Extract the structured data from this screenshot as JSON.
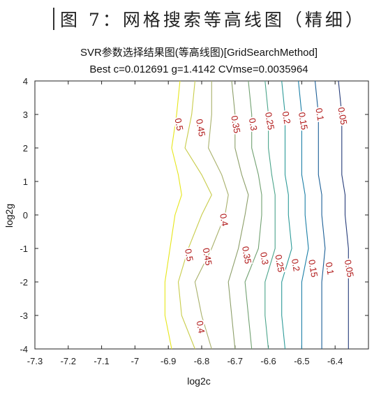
{
  "figure_heading": "图 7：网格搜索等高线图（精细）",
  "chart_data": {
    "type": "contour",
    "title": "SVR参数选择结果图(等高线图)[GridSearchMethod]",
    "subtitle": "Best c=0.012691 g=1.4142 CVmse=0.0035964",
    "xlabel": "log2c",
    "ylabel": "log2g",
    "xlim": [
      -7.3,
      -6.3
    ],
    "ylim": [
      -4,
      4
    ],
    "x_ticks": [
      "-7.3",
      "-7.2",
      "-7.1",
      "-7",
      "-6.9",
      "-6.8",
      "-6.7",
      "-6.6",
      "-6.5",
      "-6.4"
    ],
    "y_ticks": [
      "4",
      "3",
      "2",
      "1",
      "0",
      "-1",
      "-2",
      "-3",
      "-4"
    ],
    "x_tick_values": [
      -7.3,
      -7.2,
      -7.1,
      -7,
      -6.9,
      -6.8,
      -6.7,
      -6.6,
      -6.5,
      -6.4
    ],
    "y_tick_values": [
      4,
      3,
      2,
      1,
      0,
      -1,
      -2,
      -3,
      -4
    ],
    "grid": false,
    "colors": [
      "#e6e61a",
      "#c8cc4a",
      "#a8b06a",
      "#8c9e68",
      "#70a070",
      "#4aa48a",
      "#2c9a98",
      "#1a7ea6",
      "#1a5e96",
      "#243a78"
    ],
    "levels": [
      {
        "label": "0.5",
        "points": [
          [
            -6.865,
            4
          ],
          [
            -6.875,
            3
          ],
          [
            -6.89,
            2
          ],
          [
            -6.87,
            1.2
          ],
          [
            -6.86,
            0.6
          ],
          [
            -6.88,
            0
          ],
          [
            -6.895,
            -1
          ],
          [
            -6.91,
            -2
          ],
          [
            -6.91,
            -3
          ],
          [
            -6.89,
            -4
          ]
        ],
        "labels_at": [
          [
            -6.87,
            2.7
          ],
          [
            -6.84,
            -1.2
          ]
        ]
      },
      {
        "label": "0.45",
        "points": [
          [
            -6.82,
            4
          ],
          [
            -6.83,
            3
          ],
          [
            -6.85,
            2
          ],
          [
            -6.8,
            1.2
          ],
          [
            -6.77,
            0.6
          ],
          [
            -6.8,
            0
          ],
          [
            -6.84,
            -1
          ],
          [
            -6.87,
            -2
          ],
          [
            -6.86,
            -3
          ],
          [
            -6.82,
            -4
          ]
        ],
        "labels_at": [
          [
            -6.805,
            2.6
          ],
          [
            -6.785,
            -1.25
          ]
        ]
      },
      {
        "label": "0.4",
        "points": [
          [
            -6.77,
            4
          ],
          [
            -6.77,
            3
          ],
          [
            -6.78,
            2
          ],
          [
            -6.74,
            1.2
          ],
          [
            -6.72,
            0.6
          ],
          [
            -6.73,
            0
          ],
          [
            -6.77,
            -1
          ],
          [
            -6.82,
            -2
          ],
          [
            -6.8,
            -3
          ],
          [
            -6.77,
            -4
          ]
        ],
        "labels_at": [
          [
            -6.735,
            -0.15
          ],
          [
            -6.805,
            -3.35
          ]
        ]
      },
      {
        "label": "0.35",
        "points": [
          [
            -6.71,
            4
          ],
          [
            -6.7,
            3
          ],
          [
            -6.7,
            2
          ],
          [
            -6.68,
            1.2
          ],
          [
            -6.66,
            0.6
          ],
          [
            -6.67,
            0
          ],
          [
            -6.69,
            -1
          ],
          [
            -6.72,
            -2
          ],
          [
            -6.71,
            -3
          ],
          [
            -6.7,
            -4
          ]
        ],
        "labels_at": [
          [
            -6.7,
            2.7
          ],
          [
            -6.667,
            -1.2
          ]
        ]
      },
      {
        "label": "0.3",
        "points": [
          [
            -6.66,
            4
          ],
          [
            -6.65,
            3
          ],
          [
            -6.65,
            2
          ],
          [
            -6.63,
            1.2
          ],
          [
            -6.62,
            0.6
          ],
          [
            -6.62,
            0
          ],
          [
            -6.63,
            -1
          ],
          [
            -6.67,
            -2
          ],
          [
            -6.66,
            -3
          ],
          [
            -6.65,
            -4
          ]
        ],
        "labels_at": [
          [
            -6.648,
            2.7
          ],
          [
            -6.614,
            -1.3
          ]
        ]
      },
      {
        "label": "0.25",
        "points": [
          [
            -6.61,
            4
          ],
          [
            -6.6,
            3
          ],
          [
            -6.6,
            2
          ],
          [
            -6.59,
            1.2
          ],
          [
            -6.58,
            0.6
          ],
          [
            -6.58,
            0
          ],
          [
            -6.58,
            -1
          ],
          [
            -6.61,
            -2
          ],
          [
            -6.61,
            -3
          ],
          [
            -6.6,
            -4
          ]
        ],
        "labels_at": [
          [
            -6.598,
            2.8
          ],
          [
            -6.568,
            -1.45
          ]
        ]
      },
      {
        "label": "0.2",
        "points": [
          [
            -6.56,
            4
          ],
          [
            -6.55,
            3
          ],
          [
            -6.55,
            2
          ],
          [
            -6.55,
            1.2
          ],
          [
            -6.54,
            0.6
          ],
          [
            -6.54,
            0
          ],
          [
            -6.53,
            -1
          ],
          [
            -6.56,
            -2
          ],
          [
            -6.56,
            -3
          ],
          [
            -6.55,
            -4
          ]
        ],
        "labels_at": [
          [
            -6.548,
            2.9
          ],
          [
            -6.52,
            -1.5
          ]
        ]
      },
      {
        "label": "0.15",
        "points": [
          [
            -6.51,
            4
          ],
          [
            -6.5,
            3
          ],
          [
            -6.5,
            2
          ],
          [
            -6.5,
            1.2
          ],
          [
            -6.49,
            0.6
          ],
          [
            -6.49,
            0
          ],
          [
            -6.48,
            -1
          ],
          [
            -6.5,
            -2
          ],
          [
            -6.5,
            -3
          ],
          [
            -6.5,
            -4
          ]
        ],
        "labels_at": [
          [
            -6.498,
            2.8
          ],
          [
            -6.468,
            -1.6
          ]
        ]
      },
      {
        "label": "0.1",
        "points": [
          [
            -6.46,
            4
          ],
          [
            -6.45,
            3
          ],
          [
            -6.45,
            2
          ],
          [
            -6.45,
            1.2
          ],
          [
            -6.44,
            0.6
          ],
          [
            -6.44,
            0
          ],
          [
            -6.43,
            -1
          ],
          [
            -6.44,
            -2
          ],
          [
            -6.44,
            -3
          ],
          [
            -6.44,
            -4
          ]
        ],
        "labels_at": [
          [
            -6.448,
            3.0
          ],
          [
            -6.418,
            -1.6
          ]
        ]
      },
      {
        "label": "0.05",
        "points": [
          [
            -6.39,
            4
          ],
          [
            -6.38,
            3
          ],
          [
            -6.38,
            2
          ],
          [
            -6.38,
            1.2
          ],
          [
            -6.37,
            0.6
          ],
          [
            -6.37,
            0
          ],
          [
            -6.36,
            -1
          ],
          [
            -6.36,
            -2
          ],
          [
            -6.36,
            -3
          ],
          [
            -6.36,
            -4
          ]
        ],
        "labels_at": [
          [
            -6.38,
            2.95
          ],
          [
            -6.36,
            -1.6
          ]
        ]
      }
    ]
  }
}
